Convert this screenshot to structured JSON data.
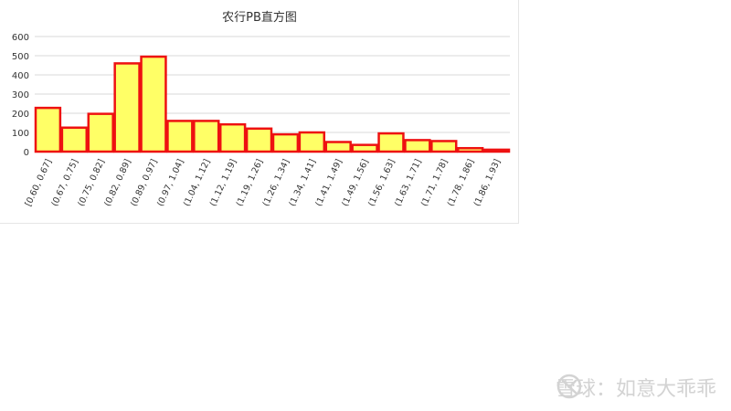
{
  "chart_data": {
    "type": "bar",
    "title": "农行PB直方图",
    "xlabel": "",
    "ylabel": "",
    "ylim": [
      0,
      600
    ],
    "yticks": [
      0,
      100,
      200,
      300,
      400,
      500,
      600
    ],
    "grid": true,
    "legend": "none",
    "categories": [
      "[0.60, 0.67]",
      "(0.67, 0.75]",
      "(0.75, 0.82]",
      "(0.82, 0.89]",
      "(0.89, 0.97]",
      "(0.97, 1.04]",
      "(1.04, 1.12]",
      "(1.12, 1.19]",
      "(1.19, 1.26]",
      "(1.26, 1.34]",
      "(1.34, 1.41]",
      "(1.41, 1.49]",
      "(1.49, 1.56]",
      "(1.56, 1.63]",
      "(1.63, 1.71]",
      "(1.71, 1.78]",
      "(1.78, 1.86]",
      "(1.86, 1.93]"
    ],
    "values": [
      228,
      125,
      197,
      460,
      495,
      160,
      160,
      142,
      120,
      90,
      100,
      50,
      35,
      95,
      60,
      55,
      18,
      10
    ],
    "colors": {
      "fill": "#ffff66",
      "stroke": "#ee1111",
      "grid": "#d9d9d9",
      "text": "#333333"
    }
  },
  "watermark": {
    "text": "雪球：如意大乖乖",
    "icon": "snowball-logo-icon"
  }
}
